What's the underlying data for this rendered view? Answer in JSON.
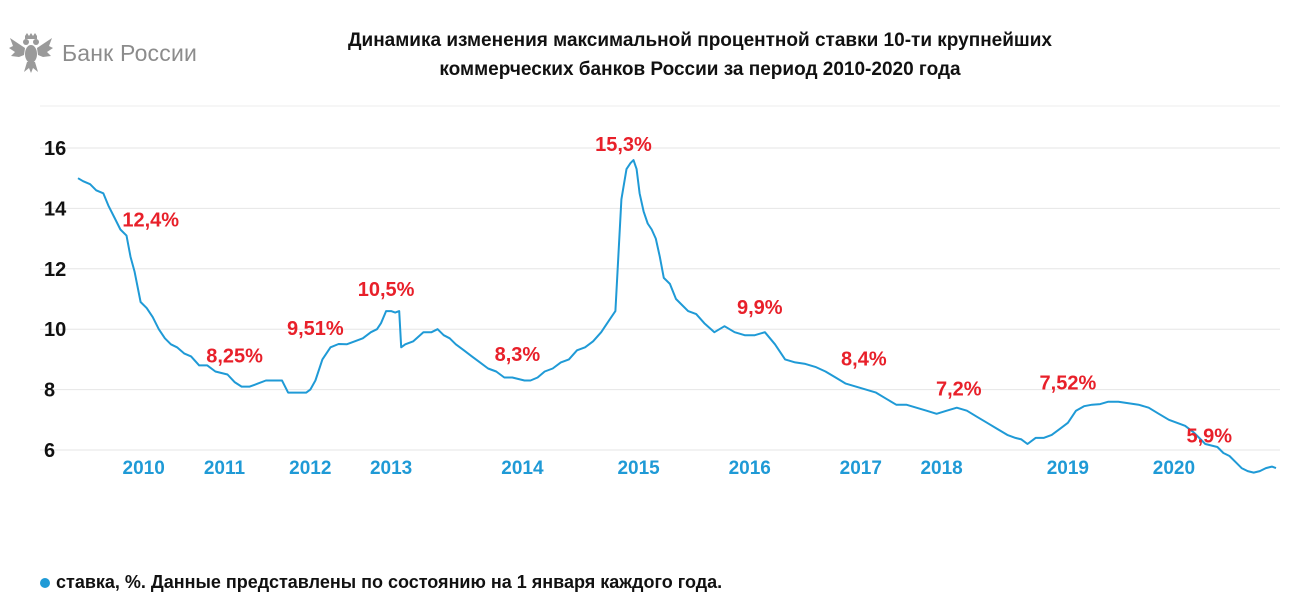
{
  "header": {
    "logo_text": "Банк России",
    "logo_icon": "double-headed-eagle-icon",
    "title_line1": "Динамика изменения максимальной процентной ставки 10-ти крупнейших",
    "title_line2": "коммерческих банков России за период 2010-2020 года"
  },
  "colors": {
    "line": "#1f9ad6",
    "annotation": "#e8202a",
    "year_label": "#1f9ad6",
    "grid": "#e6e6e6",
    "axis_text": "#111111"
  },
  "footer": {
    "legend": "ставка, %. Данные представлены по состоянию на 1 января каждого года."
  },
  "chart_data": {
    "type": "line",
    "title": "Динамика изменения максимальной процентной ставки 10-ти крупнейших коммерческих банков России за период 2010-2020 года",
    "ylim": [
      6,
      16
    ],
    "yticks": [
      6,
      8,
      10,
      12,
      14,
      16
    ],
    "xlim": [
      2009.0,
      2020.9
    ],
    "grid": true,
    "legend": "bottom-left",
    "year_labels": [
      {
        "label": "2010",
        "x": 2009.65
      },
      {
        "label": "2011",
        "x": 2010.45
      },
      {
        "label": "2012",
        "x": 2011.3
      },
      {
        "label": "2013",
        "x": 2012.1
      },
      {
        "label": "2014",
        "x": 2013.4
      },
      {
        "label": "2015",
        "x": 2014.55
      },
      {
        "label": "2016",
        "x": 2015.65
      },
      {
        "label": "2017",
        "x": 2016.75
      },
      {
        "label": "2018",
        "x": 2017.55
      },
      {
        "label": "2019",
        "x": 2018.8
      },
      {
        "label": "2020",
        "x": 2019.85
      }
    ],
    "annotations": [
      {
        "text": "12,4%",
        "x": 2009.72,
        "y": 13.4
      },
      {
        "text": "8,25%",
        "x": 2010.55,
        "y": 8.9
      },
      {
        "text": "9,51%",
        "x": 2011.35,
        "y": 9.8
      },
      {
        "text": "10,5%",
        "x": 2012.05,
        "y": 11.1
      },
      {
        "text": "8,3%",
        "x": 2013.35,
        "y": 8.95
      },
      {
        "text": "15,3%",
        "x": 2014.4,
        "y": 15.9
      },
      {
        "text": "9,9%",
        "x": 2015.75,
        "y": 10.5
      },
      {
        "text": "8,4%",
        "x": 2016.78,
        "y": 8.8
      },
      {
        "text": "7,2%",
        "x": 2017.72,
        "y": 7.8
      },
      {
        "text": "7,52%",
        "x": 2018.8,
        "y": 8.0
      },
      {
        "text": "5,9%",
        "x": 2020.2,
        "y": 6.25
      }
    ],
    "series": [
      {
        "x": [
          2009.0,
          2009.05,
          2009.12,
          2009.18,
          2009.25,
          2009.3,
          2009.36,
          2009.42,
          2009.48,
          2009.52,
          2009.56,
          2009.62,
          2009.68,
          2009.74,
          2009.8,
          2009.86,
          2009.92,
          2009.98,
          2010.05,
          2010.12,
          2010.2,
          2010.28,
          2010.36,
          2010.42,
          2010.48,
          2010.55,
          2010.62,
          2010.7,
          2010.78,
          2010.86,
          2010.94,
          2011.02,
          2011.08,
          2011.14,
          2011.2,
          2011.26,
          2011.3,
          2011.35,
          2011.42,
          2011.5,
          2011.58,
          2011.66,
          2011.74,
          2011.82,
          2011.9,
          2011.96,
          2012.0,
          2012.05,
          2012.1,
          2012.14,
          2012.18,
          2012.2,
          2012.24,
          2012.32,
          2012.42,
          2012.5,
          2012.56,
          2012.62,
          2012.68,
          2012.74,
          2012.82,
          2012.9,
          2012.98,
          2013.06,
          2013.14,
          2013.22,
          2013.3,
          2013.36,
          2013.42,
          2013.48,
          2013.55,
          2013.62,
          2013.7,
          2013.78,
          2013.86,
          2013.94,
          2014.02,
          2014.1,
          2014.18,
          2014.26,
          2014.32,
          2014.38,
          2014.43,
          2014.47,
          2014.5,
          2014.53,
          2014.56,
          2014.6,
          2014.64,
          2014.68,
          2014.72,
          2014.76,
          2014.8,
          2014.86,
          2014.92,
          2014.98,
          2015.04,
          2015.12,
          2015.2,
          2015.3,
          2015.4,
          2015.5,
          2015.6,
          2015.7,
          2015.8,
          2015.9,
          2016.0,
          2016.1,
          2016.2,
          2016.3,
          2016.4,
          2016.5,
          2016.6,
          2016.7,
          2016.8,
          2016.9,
          2017.0,
          2017.1,
          2017.2,
          2017.3,
          2017.4,
          2017.5,
          2017.6,
          2017.7,
          2017.8,
          2017.9,
          2018.0,
          2018.1,
          2018.2,
          2018.28,
          2018.34,
          2018.4,
          2018.48,
          2018.56,
          2018.64,
          2018.72,
          2018.8,
          2018.88,
          2018.96,
          2019.04,
          2019.12,
          2019.2,
          2019.3,
          2019.4,
          2019.5,
          2019.6,
          2019.7,
          2019.8,
          2019.88,
          2019.96,
          2020.04,
          2020.1,
          2020.16,
          2020.22,
          2020.28,
          2020.34,
          2020.4,
          2020.46,
          2020.52,
          2020.58,
          2020.64,
          2020.7,
          2020.76,
          2020.82,
          2020.86
        ],
        "values": [
          15.0,
          14.9,
          14.8,
          14.6,
          14.5,
          14.1,
          13.7,
          13.3,
          13.1,
          12.4,
          11.9,
          10.9,
          10.7,
          10.4,
          10.0,
          9.7,
          9.5,
          9.4,
          9.2,
          9.1,
          8.8,
          8.8,
          8.6,
          8.55,
          8.5,
          8.25,
          8.1,
          8.1,
          8.2,
          8.3,
          8.3,
          8.3,
          7.9,
          7.9,
          7.9,
          7.9,
          8.0,
          8.3,
          9.0,
          9.4,
          9.51,
          9.5,
          9.6,
          9.7,
          9.9,
          10.0,
          10.2,
          10.6,
          10.6,
          10.55,
          10.6,
          9.4,
          9.5,
          9.6,
          9.9,
          9.9,
          10.0,
          9.8,
          9.7,
          9.5,
          9.3,
          9.1,
          8.9,
          8.7,
          8.6,
          8.4,
          8.4,
          8.35,
          8.3,
          8.3,
          8.4,
          8.6,
          8.7,
          8.9,
          9.0,
          9.3,
          9.4,
          9.6,
          9.9,
          10.3,
          10.6,
          14.3,
          15.3,
          15.5,
          15.6,
          15.3,
          14.5,
          13.9,
          13.5,
          13.3,
          13.0,
          12.4,
          11.7,
          11.5,
          11.0,
          10.8,
          10.6,
          10.5,
          10.2,
          9.9,
          10.1,
          9.9,
          9.8,
          9.8,
          9.9,
          9.5,
          9.0,
          8.9,
          8.85,
          8.75,
          8.6,
          8.4,
          8.2,
          8.1,
          8.0,
          7.9,
          7.7,
          7.5,
          7.5,
          7.4,
          7.3,
          7.2,
          7.3,
          7.4,
          7.3,
          7.1,
          6.9,
          6.7,
          6.5,
          6.4,
          6.35,
          6.2,
          6.4,
          6.4,
          6.5,
          6.7,
          6.9,
          7.3,
          7.45,
          7.5,
          7.52,
          7.6,
          7.6,
          7.55,
          7.5,
          7.4,
          7.2,
          7.0,
          6.9,
          6.8,
          6.6,
          6.4,
          6.2,
          6.15,
          6.1,
          5.9,
          5.8,
          5.6,
          5.4,
          5.3,
          5.25,
          5.3,
          5.4,
          5.45,
          5.4
        ]
      }
    ]
  }
}
